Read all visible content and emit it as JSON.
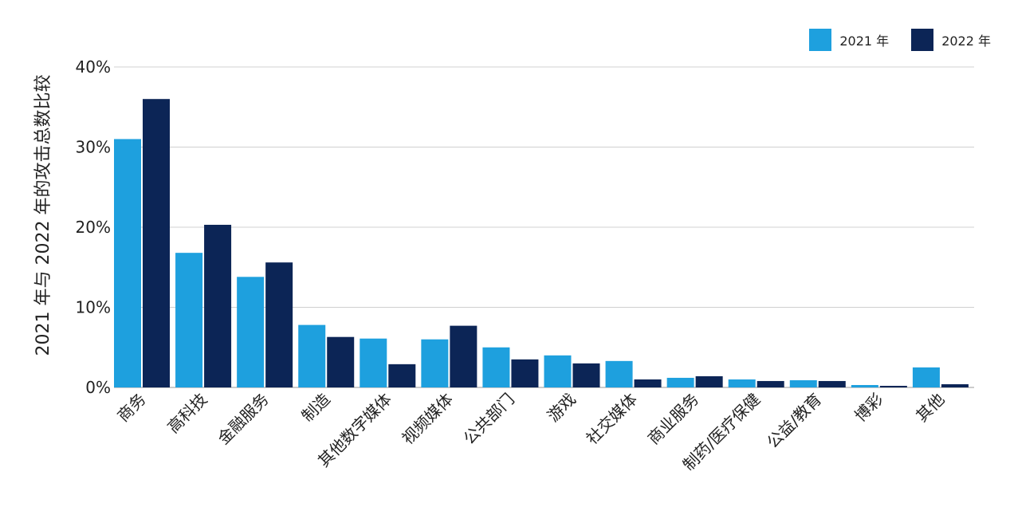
{
  "chart_data": {
    "type": "bar",
    "title": "",
    "ylabel": "2021 年与 2022 年的攻击总数比较",
    "xlabel": "",
    "ylim": [
      0,
      40
    ],
    "yticks": [
      "0%",
      "10%",
      "20%",
      "30%",
      "40%"
    ],
    "grid": true,
    "legend_position": "top-right",
    "categories": [
      "商务",
      "高科技",
      "金融服务",
      "制造",
      "其他数字媒体",
      "视频媒体",
      "公共部门",
      "游戏",
      "社交媒体",
      "商业服务",
      "制药/医疗保健",
      "公益/教育",
      "博彩",
      "其他"
    ],
    "series": [
      {
        "name": "2021 年",
        "color": "#1ea0de",
        "values": [
          31.0,
          16.8,
          13.8,
          7.8,
          6.1,
          6.0,
          5.0,
          4.0,
          3.3,
          1.2,
          1.0,
          0.9,
          0.3,
          2.5
        ]
      },
      {
        "name": "2022 年",
        "color": "#0c2556",
        "values": [
          36.0,
          20.3,
          15.6,
          6.3,
          2.9,
          7.7,
          3.5,
          3.0,
          1.0,
          1.4,
          0.8,
          0.8,
          0.2,
          0.4
        ]
      }
    ]
  }
}
